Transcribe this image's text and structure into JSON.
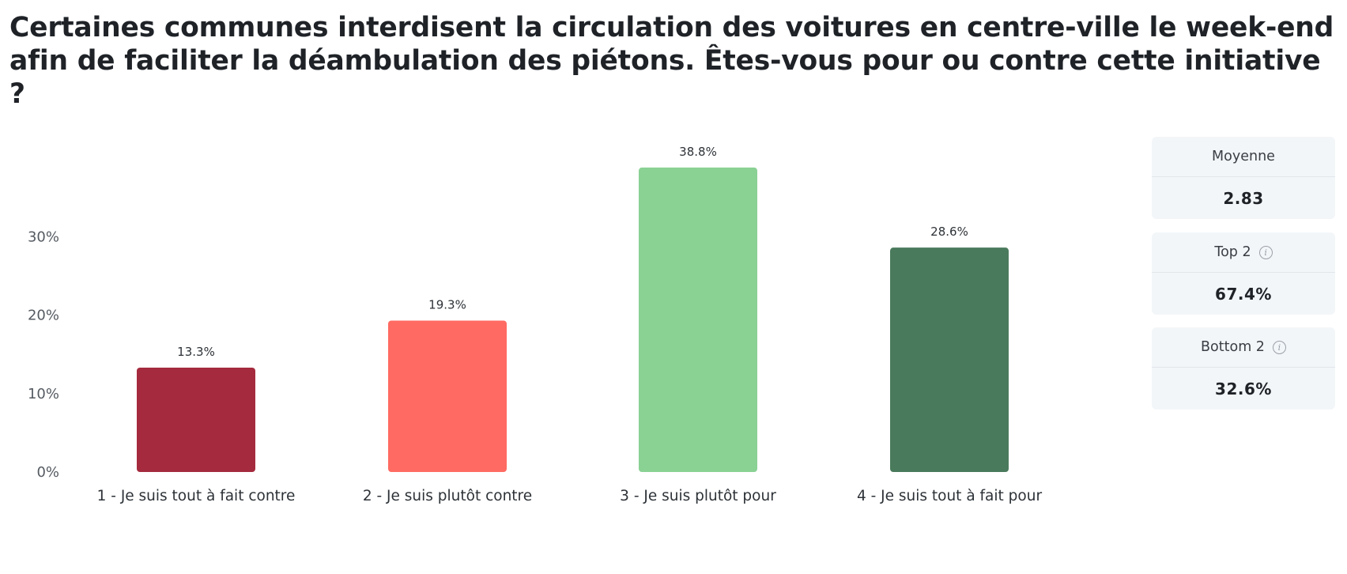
{
  "question": "Certaines communes interdisent la circulation des voitures en centre-ville le week-end afin de faciliter la déambulation des piétons. Êtes-vous pour ou contre cette initiative ?",
  "chart_data": {
    "type": "bar",
    "title": "",
    "xlabel": "",
    "ylabel": "",
    "categories": [
      "1 - Je suis tout à fait contre",
      "2 - Je suis plutôt contre",
      "3 - Je suis plutôt pour",
      "4 - Je suis tout à fait pour"
    ],
    "values": [
      13.3,
      19.3,
      38.8,
      28.6
    ],
    "value_labels": [
      "13.3%",
      "19.3%",
      "38.8%",
      "28.6%"
    ],
    "colors": [
      "#a52a3d",
      "#ff6b62",
      "#8ad194",
      "#4a7a5c"
    ],
    "yticks": [
      {
        "value": 0,
        "label": "0%"
      },
      {
        "value": 10,
        "label": "10%"
      },
      {
        "value": 20,
        "label": "20%"
      },
      {
        "value": 30,
        "label": "30%"
      }
    ],
    "ylim": [
      0,
      40
    ],
    "grid": false,
    "legend": "none"
  },
  "stats": [
    {
      "label": "Moyenne",
      "value": "2.83",
      "info": false
    },
    {
      "label": "Top 2",
      "value": "67.4%",
      "info": true,
      "icon": "info-icon"
    },
    {
      "label": "Bottom 2",
      "value": "32.6%",
      "info": true,
      "icon": "info-icon"
    }
  ]
}
